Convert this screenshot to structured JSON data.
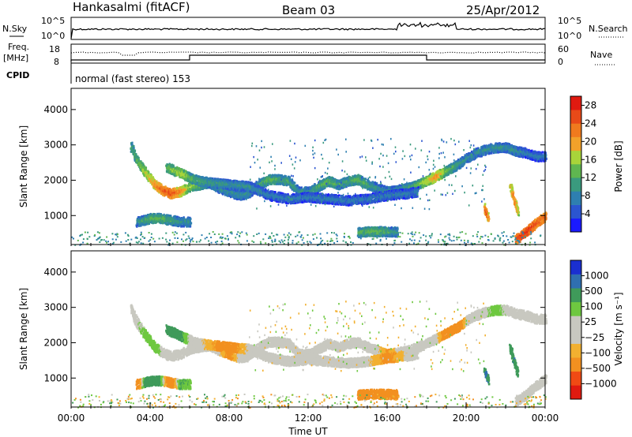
{
  "header": {
    "station": "Hankasalmi (fitACF)",
    "beam": "Beam 03",
    "date": "25/Apr/2012"
  },
  "top_panels": {
    "nsky_label": "N.Sky",
    "nsearch_label": "N.Search",
    "freq_label_1": "Freq.",
    "freq_label_2": "[MHz]",
    "nave_label": "Nave",
    "cpid_label": "CPID",
    "nsky_ticks": [
      "10^5",
      "10^0"
    ],
    "nsearch_ticks": [
      "10^5",
      "10^0"
    ],
    "freq_ticks": [
      "18",
      "8"
    ],
    "nave_ticks": [
      "60",
      "0"
    ],
    "cpid_text": "normal (fast stereo) 153"
  },
  "colors": {
    "power": [
      "#1a1aff",
      "#2b55d0",
      "#2e7fb0",
      "#3a9a7e",
      "#5fb650",
      "#a8d43a",
      "#f2a12a",
      "#f07a1e",
      "#e84a18",
      "#e01a10"
    ],
    "velocity": [
      "#e01a10",
      "#f04a14",
      "#f29020",
      "#f2b030",
      "#c8c8c0",
      "#c8c8c0",
      "#6ec840",
      "#3f9a5a",
      "#2f6fb0",
      "#1a2fd0"
    ],
    "ground": "#c8c8c0"
  },
  "chart_data": [
    {
      "type": "heatmap",
      "name": "power",
      "xlabel": "",
      "ylabel": "Slant Range [km]",
      "xlim": [
        0,
        24
      ],
      "ylim": [
        180,
        4600
      ],
      "yticks": [
        "1000",
        "2000",
        "3000",
        "4000"
      ],
      "colorbar_label": "Power [dB]",
      "colorbar_ticks": [
        "4",
        "8",
        "12",
        "16",
        "20",
        "24",
        "28"
      ],
      "colorbar_range": [
        0,
        30
      ],
      "bands": [
        {
          "t": [
            3.0,
            3.3,
            3.8,
            4.2,
            4.6,
            5.0,
            5.5,
            6.0,
            6.5,
            7.0,
            7.5,
            8.0,
            8.5,
            9.0,
            9.5,
            10.0,
            10.5,
            11.0,
            11.5,
            12.0,
            12.5,
            13.0,
            13.5,
            14.0,
            14.5,
            15.0,
            15.5,
            16.0,
            16.5,
            17.0,
            17.5,
            18.0,
            18.5,
            19.0,
            19.5,
            20.0,
            20.5,
            21.0,
            21.5,
            22.0,
            22.5,
            23.0,
            23.5,
            24.0
          ],
          "r": [
            3000,
            2600,
            2200,
            1900,
            1750,
            1650,
            1700,
            1850,
            1900,
            1950,
            1800,
            1700,
            1600,
            1650,
            1900,
            2050,
            2050,
            2000,
            1700,
            1700,
            1850,
            2000,
            1900,
            2000,
            2050,
            1900,
            1800,
            1700,
            1750,
            1800,
            1900,
            2000,
            2150,
            2300,
            2450,
            2650,
            2800,
            2900,
            2950,
            2950,
            2850,
            2800,
            2700,
            2700
          ],
          "p": [
            12,
            14,
            18,
            22,
            24,
            26,
            22,
            16,
            14,
            12,
            10,
            10,
            10,
            10,
            12,
            14,
            12,
            12,
            10,
            10,
            12,
            14,
            12,
            12,
            14,
            12,
            10,
            10,
            10,
            12,
            14,
            18,
            22,
            14,
            12,
            10,
            10,
            10,
            10,
            10,
            10,
            8,
            8,
            8
          ]
        },
        {
          "t": [
            4.8,
            5.2,
            5.6,
            6.0,
            6.5,
            8.0,
            9.0,
            10.0,
            11.0,
            12.0,
            13.0,
            14.0,
            15.0,
            16.0,
            17.0,
            17.5
          ],
          "r": [
            2400,
            2300,
            2200,
            2100,
            2000,
            1900,
            1850,
            1600,
            1500,
            1550,
            1500,
            1450,
            1500,
            1600,
            1650,
            1700
          ],
          "p": [
            14,
            16,
            18,
            14,
            12,
            10,
            10,
            8,
            8,
            8,
            8,
            8,
            8,
            8,
            8,
            8
          ]
        },
        {
          "t": [
            3.3,
            3.7,
            4.0,
            4.5,
            5.0,
            5.5,
            6.0
          ],
          "r": [
            850,
            900,
            950,
            950,
            900,
            850,
            850
          ],
          "p": [
            10,
            12,
            14,
            14,
            12,
            10,
            10
          ]
        },
        {
          "t": [
            14.5,
            15.0,
            15.5,
            16.0,
            16.5
          ],
          "r": [
            550,
            570,
            580,
            570,
            560
          ],
          "p": [
            12,
            14,
            14,
            12,
            10
          ]
        },
        {
          "t": [
            20.9,
            21.0,
            21.1
          ],
          "r": [
            1250,
            1100,
            950
          ],
          "p": [
            22,
            26,
            22
          ]
        },
        {
          "t": [
            22.2,
            22.4,
            22.6
          ],
          "r": [
            1900,
            1500,
            1150
          ],
          "p": [
            18,
            24,
            20
          ]
        },
        {
          "t": [
            22.5,
            23.0,
            23.5,
            24.0
          ],
          "r": [
            350,
            550,
            800,
            1000
          ],
          "p": [
            26,
            28,
            26,
            24
          ]
        }
      ]
    },
    {
      "type": "heatmap",
      "name": "velocity",
      "xlabel": "Time UT",
      "ylabel": "Slant Range [km]",
      "xlim": [
        0,
        24
      ],
      "ylim": [
        180,
        4600
      ],
      "xticks": [
        "00:00",
        "04:00",
        "08:00",
        "12:00",
        "16:00",
        "20:00",
        "00:00"
      ],
      "yticks": [
        "1000",
        "2000",
        "3000",
        "4000"
      ],
      "colorbar_label": "Velocity [m s⁻¹]",
      "colorbar_ticks": [
        "1000",
        "500",
        "100",
        "25",
        "−25",
        "−100",
        "−500",
        "−1000"
      ],
      "bands": [
        {
          "t": [
            3.0,
            3.3,
            3.8,
            4.2,
            4.6,
            5.0,
            5.5,
            6.0,
            6.5,
            7.0,
            7.5,
            8.0,
            8.5,
            9.0,
            9.5,
            10.0,
            10.5,
            11.0,
            11.5,
            12.0,
            12.5,
            13.0,
            13.5,
            14.0,
            14.5,
            15.0,
            15.5,
            16.0,
            16.5,
            17.0,
            17.5,
            18.0,
            18.5,
            19.0,
            19.5,
            20.0,
            20.5,
            21.0,
            21.5,
            22.0,
            22.5,
            23.0,
            23.5,
            24.0
          ],
          "r": [
            3000,
            2600,
            2200,
            1900,
            1750,
            1650,
            1700,
            1850,
            1900,
            1950,
            1800,
            1700,
            1600,
            1650,
            1900,
            2050,
            2050,
            2000,
            1700,
            1700,
            1850,
            2000,
            1900,
            2000,
            2050,
            1900,
            1800,
            1700,
            1750,
            1800,
            1900,
            2000,
            2150,
            2300,
            2450,
            2650,
            2800,
            2900,
            2950,
            2950,
            2850,
            2800,
            2700,
            2700
          ],
          "v": [
            0,
            0,
            60,
            80,
            0,
            0,
            0,
            0,
            0,
            0,
            0,
            -150,
            0,
            0,
            0,
            0,
            0,
            0,
            0,
            0,
            0,
            0,
            0,
            0,
            0,
            0,
            0,
            -120,
            0,
            0,
            0,
            0,
            0,
            -200,
            -300,
            0,
            0,
            0,
            80,
            0,
            0,
            0,
            0,
            0
          ]
        },
        {
          "t": [
            4.8,
            5.2,
            5.6,
            6.0,
            6.5,
            8.0,
            9.0,
            10.0,
            11.0,
            12.0,
            13.0,
            14.0,
            15.0,
            16.0,
            17.0,
            17.5
          ],
          "r": [
            2400,
            2300,
            2200,
            2100,
            2000,
            1900,
            1850,
            1600,
            1500,
            1550,
            1500,
            1450,
            1500,
            1600,
            1650,
            1700
          ],
          "v": [
            150,
            200,
            120,
            0,
            0,
            -200,
            0,
            0,
            0,
            0,
            0,
            0,
            0,
            -150,
            0,
            0
          ]
        },
        {
          "t": [
            3.3,
            3.7,
            4.0,
            4.5,
            5.0,
            5.5,
            6.0
          ],
          "r": [
            850,
            900,
            950,
            950,
            900,
            850,
            850
          ],
          "v": [
            -300,
            120,
            150,
            120,
            -250,
            100,
            80
          ]
        },
        {
          "t": [
            14.5,
            15.0,
            15.5,
            16.0,
            16.5
          ],
          "r": [
            550,
            570,
            580,
            570,
            560
          ],
          "v": [
            -200,
            -300,
            -350,
            -300,
            -250
          ]
        },
        {
          "t": [
            20.9,
            21.0,
            21.1
          ],
          "r": [
            1250,
            1100,
            950
          ],
          "v": [
            400,
            600,
            400
          ]
        },
        {
          "t": [
            22.2,
            22.4,
            22.6
          ],
          "r": [
            1900,
            1500,
            1150
          ],
          "v": [
            300,
            500,
            300
          ]
        },
        {
          "t": [
            22.5,
            23.0,
            23.5,
            24.0
          ],
          "r": [
            350,
            550,
            800,
            1000
          ],
          "v": [
            0,
            0,
            0,
            0
          ]
        }
      ]
    }
  ]
}
